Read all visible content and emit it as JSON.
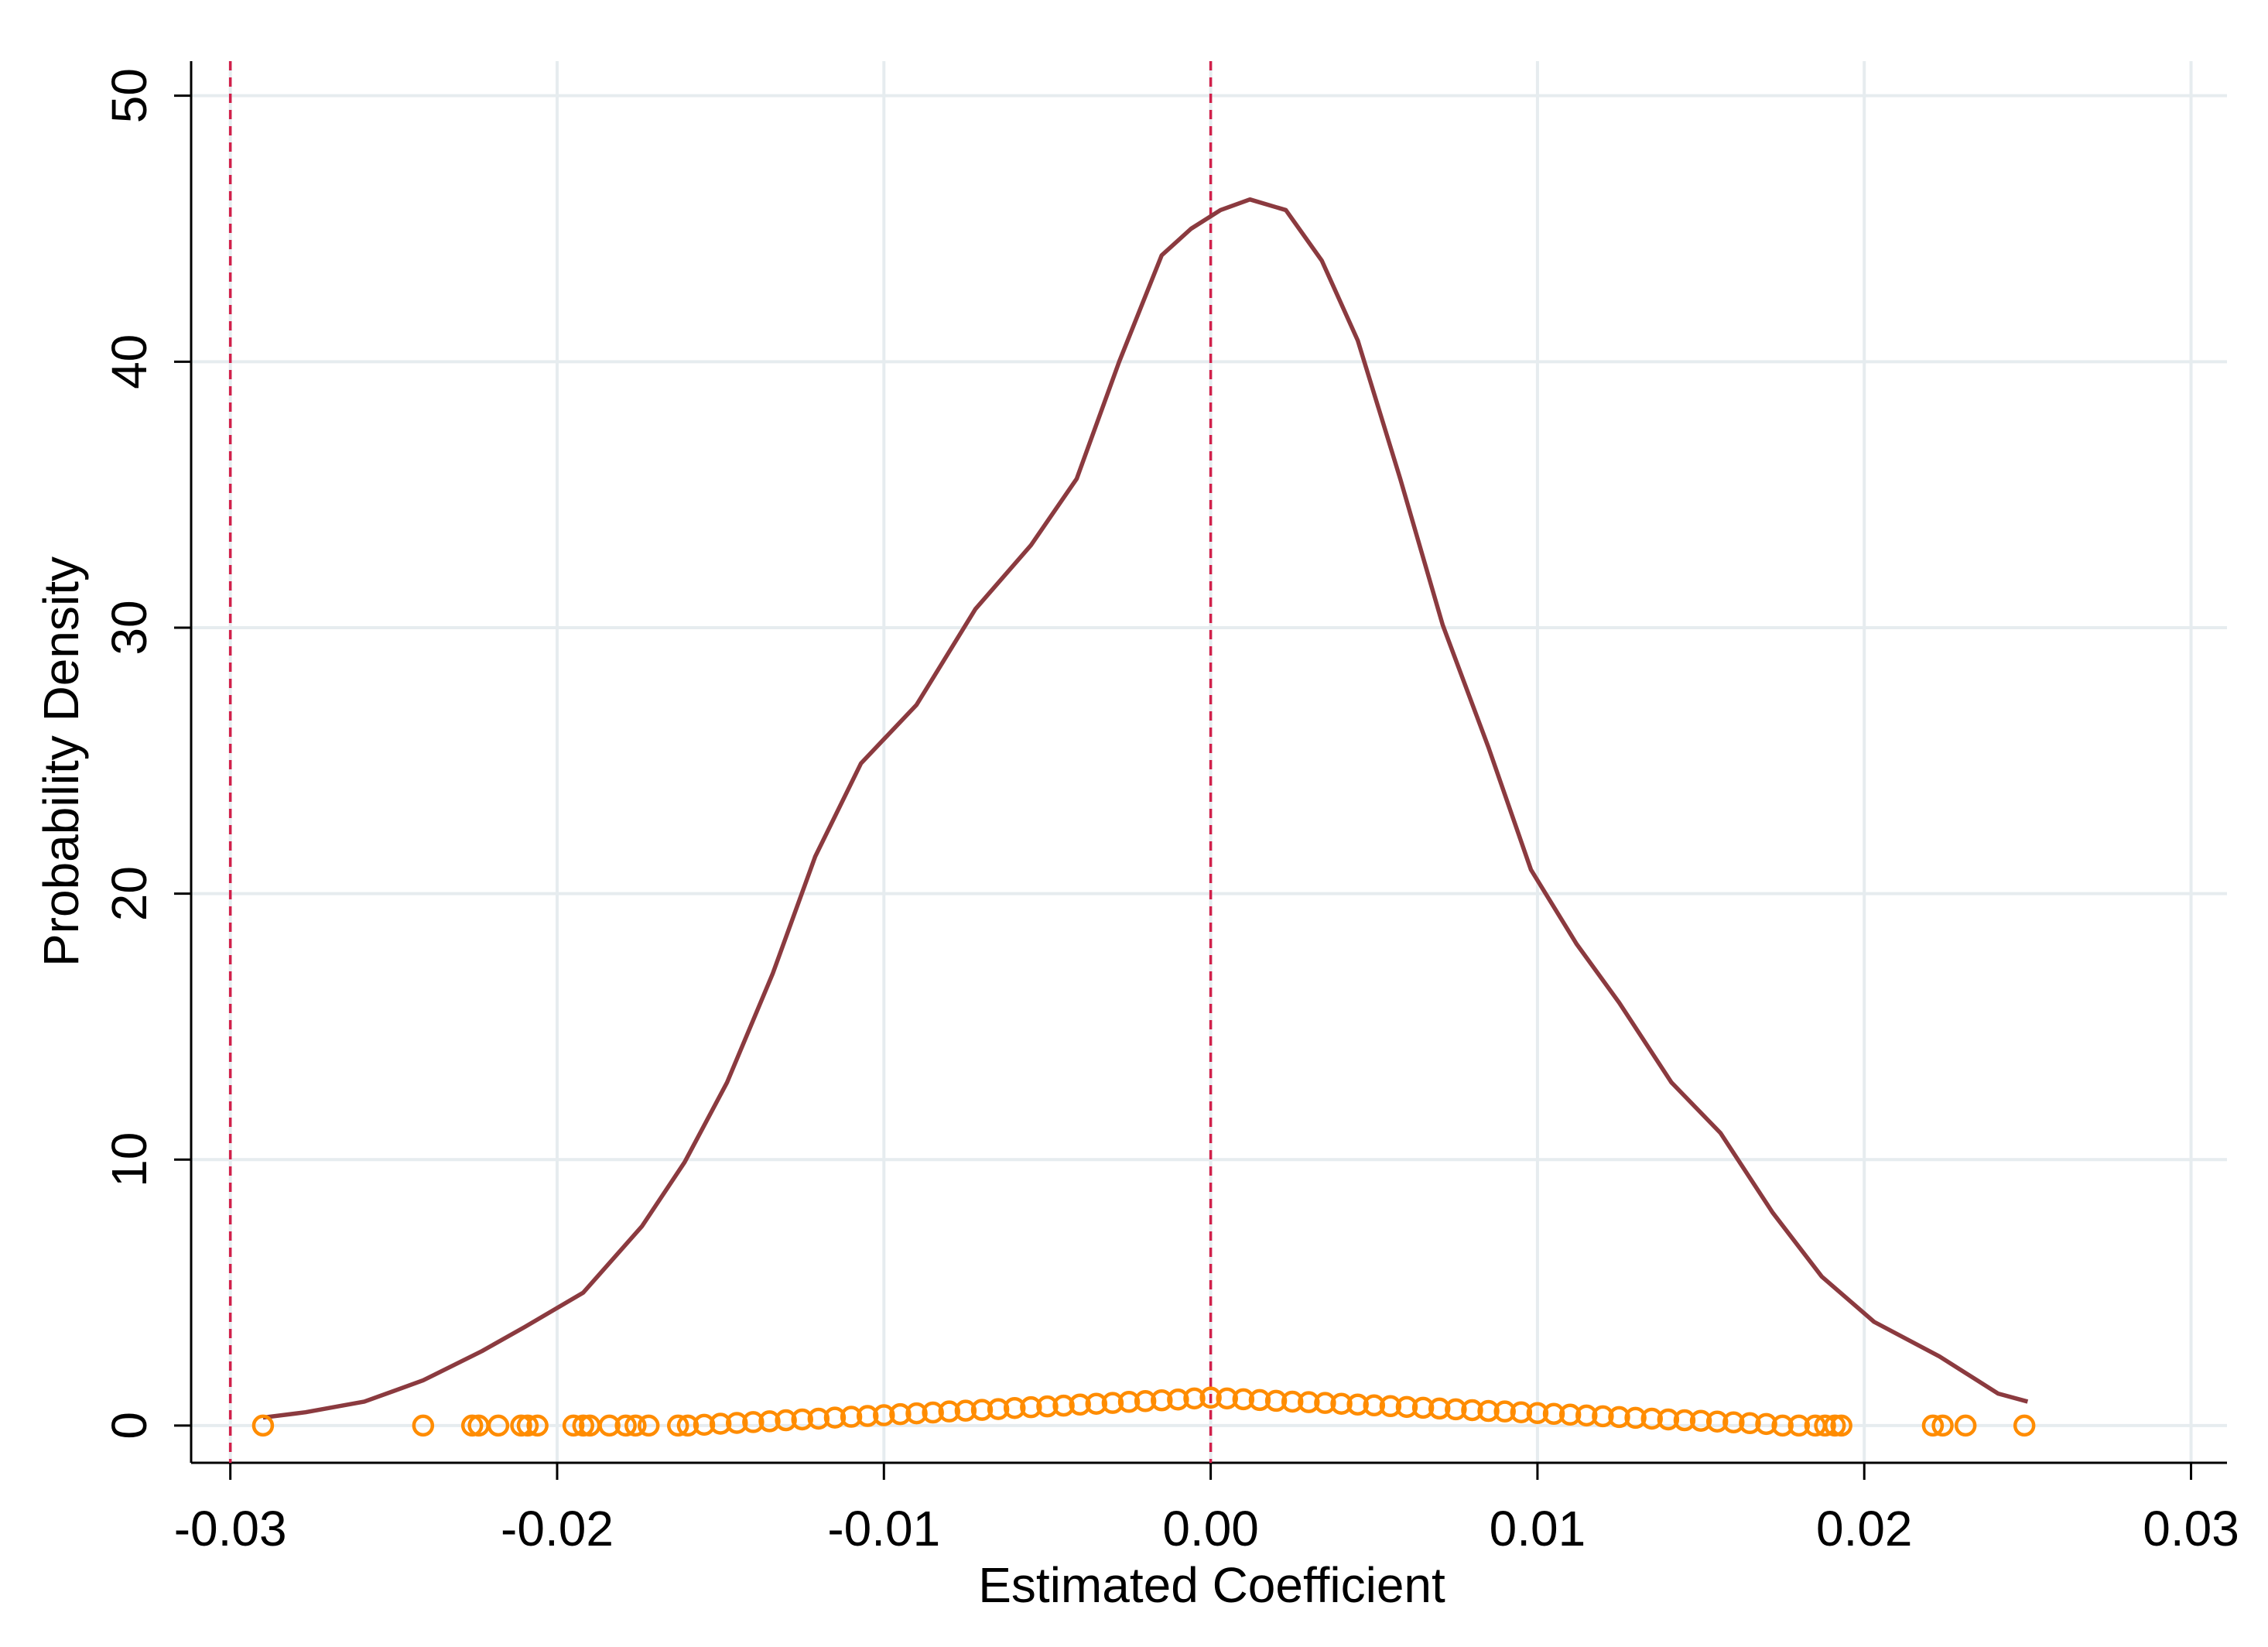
{
  "chart_data": {
    "type": "line",
    "x_label": "Estimated Coefficient",
    "y_label": "Probability Density",
    "xlim": [
      -0.0312,
      0.0311
    ],
    "ylim": [
      -1.4,
      51.3
    ],
    "xticks": [
      -0.03,
      -0.02,
      -0.01,
      {
        "value": 0,
        "label": "0.00"
      },
      0.01,
      0.02,
      0.03
    ],
    "yticks": [
      0,
      10,
      20,
      30,
      40,
      50
    ],
    "grid": true,
    "vlines": [
      -0.03,
      0
    ],
    "vline_color": "#d1204a",
    "series": [
      {
        "type": "line",
        "color": "#8b3a3f",
        "x": [
          -0.029,
          -0.0277,
          -0.0259,
          -0.0241,
          -0.0223,
          -0.021,
          -0.0192,
          -0.0174,
          -0.0161,
          -0.0148,
          -0.0134,
          -0.0121,
          -0.0107,
          -0.009,
          -0.0072,
          -0.0055,
          -0.0041,
          -0.0028,
          -0.0015,
          -0.0006,
          0.0003,
          0.0012,
          0.0023,
          0.0034,
          0.0045,
          0.0058,
          0.0071,
          0.0085,
          0.0098,
          0.0112,
          0.0125,
          0.0141,
          0.0156,
          0.0172,
          0.0187,
          0.0203,
          0.0223,
          0.0241,
          0.025
        ],
        "values": [
          0.3,
          0.5,
          0.9,
          1.7,
          2.8,
          3.7,
          5.0,
          7.5,
          9.9,
          12.9,
          17,
          21.4,
          24.9,
          27.1,
          30.7,
          33.1,
          35.6,
          40,
          44,
          45,
          45.7,
          46.1,
          45.7,
          43.8,
          40.8,
          35.6,
          30.1,
          25.5,
          20.9,
          18.1,
          15.9,
          12.9,
          11,
          8,
          5.6,
          3.9,
          2.6,
          1.2,
          0.9
        ]
      },
      {
        "type": "scatter",
        "color": "#ff8c00",
        "x": [
          -0.029,
          -0.0241,
          -0.0226,
          -0.0224,
          -0.0218,
          -0.0211,
          -0.0209,
          -0.0206,
          -0.0195,
          -0.0192,
          -0.019,
          -0.0184,
          -0.0179,
          -0.0176,
          -0.0172,
          -0.0163,
          -0.016,
          -0.0155,
          -0.015,
          -0.0145,
          -0.014,
          -0.0135,
          -0.013,
          -0.0125,
          -0.012,
          -0.0115,
          -0.011,
          -0.0105,
          -0.01,
          -0.0095,
          -0.009,
          -0.0085,
          -0.008,
          -0.0075,
          -0.007,
          -0.0065,
          -0.006,
          -0.0055,
          -0.005,
          -0.0045,
          -0.004,
          -0.0035,
          -0.003,
          -0.0025,
          -0.002,
          -0.0015,
          -0.001,
          -0.0005,
          0,
          0.0005,
          0.001,
          0.0015,
          0.002,
          0.0025,
          0.003,
          0.0035,
          0.004,
          0.0045,
          0.005,
          0.0055,
          0.006,
          0.0065,
          0.007,
          0.0075,
          0.008,
          0.0085,
          0.009,
          0.0095,
          0.01,
          0.0105,
          0.011,
          0.0115,
          0.012,
          0.0125,
          0.013,
          0.0135,
          0.014,
          0.0145,
          0.015,
          0.0155,
          0.016,
          0.0165,
          0.017,
          0.0175,
          0.018,
          0.0185,
          0.0188,
          0.0191,
          0.0193,
          0.0221,
          0.0224,
          0.0231,
          0.0249
        ],
        "values": [
          0,
          0,
          0,
          0,
          0,
          0,
          0,
          0,
          0,
          0,
          0,
          0,
          0,
          0,
          0,
          0,
          0,
          0.03,
          0.07,
          0.1,
          0.13,
          0.16,
          0.2,
          0.23,
          0.26,
          0.3,
          0.33,
          0.36,
          0.39,
          0.43,
          0.46,
          0.49,
          0.53,
          0.56,
          0.59,
          0.62,
          0.66,
          0.69,
          0.72,
          0.75,
          0.79,
          0.82,
          0.85,
          0.89,
          0.92,
          0.95,
          0.98,
          1.02,
          1.05,
          1.02,
          0.99,
          0.96,
          0.93,
          0.9,
          0.88,
          0.85,
          0.82,
          0.79,
          0.76,
          0.73,
          0.7,
          0.67,
          0.64,
          0.61,
          0.58,
          0.55,
          0.53,
          0.5,
          0.47,
          0.44,
          0.41,
          0.38,
          0.35,
          0.32,
          0.29,
          0.26,
          0.23,
          0.2,
          0.18,
          0.15,
          0.12,
          0.09,
          0.06,
          0,
          0,
          0,
          0,
          0,
          0,
          0,
          0,
          0,
          0
        ]
      }
    ]
  }
}
